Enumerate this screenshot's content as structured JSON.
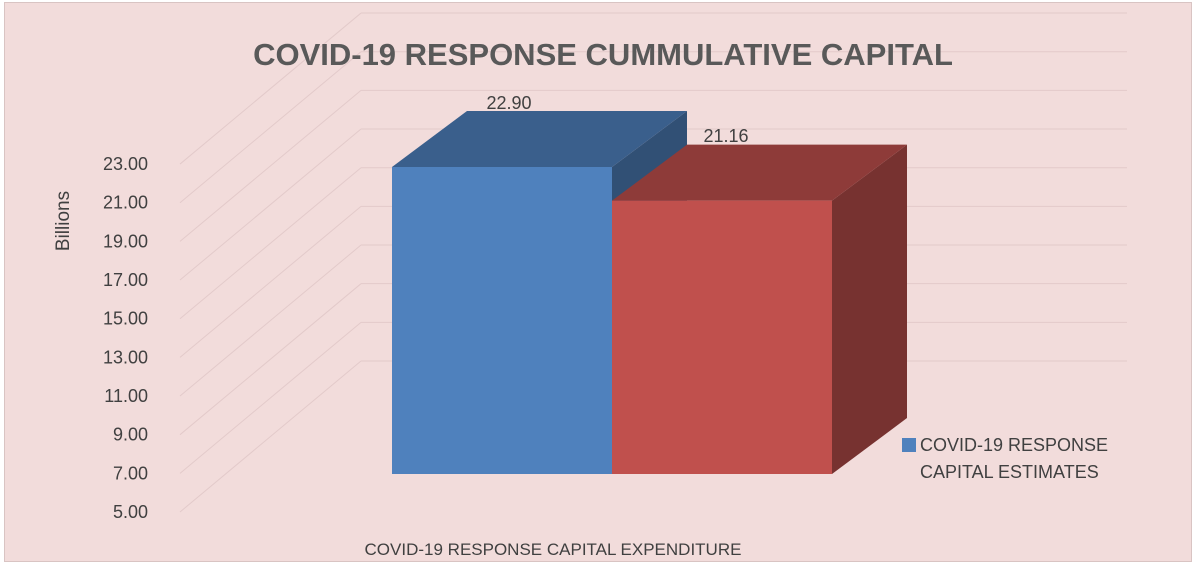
{
  "chart_data": {
    "type": "bar",
    "title": "COVID-19 RESPONSE CUMMULATIVE CAPITAL",
    "xlabel": "COVID-19 RESPONSE CAPITAL EXPENDITURE",
    "ylabel": "Billions",
    "ylim": [
      5,
      23
    ],
    "y_ticks": [
      "5.00",
      "7.00",
      "9.00",
      "11.00",
      "13.00",
      "15.00",
      "17.00",
      "19.00",
      "21.00",
      "23.00"
    ],
    "series": [
      {
        "name": "COVID-19 RESPONSE CAPITAL ESTIMATES",
        "value": 22.9,
        "label": "22.90",
        "color": "#4f81bd"
      },
      {
        "name": "",
        "value": 21.16,
        "label": "21.16",
        "color": "#c0504d"
      }
    ],
    "legend": {
      "position": "right",
      "entries": [
        "COVID-19 RESPONSE CAPITAL ESTIMATES"
      ]
    },
    "grid": true,
    "style": "3d-column",
    "background": "#f2dcdb"
  }
}
